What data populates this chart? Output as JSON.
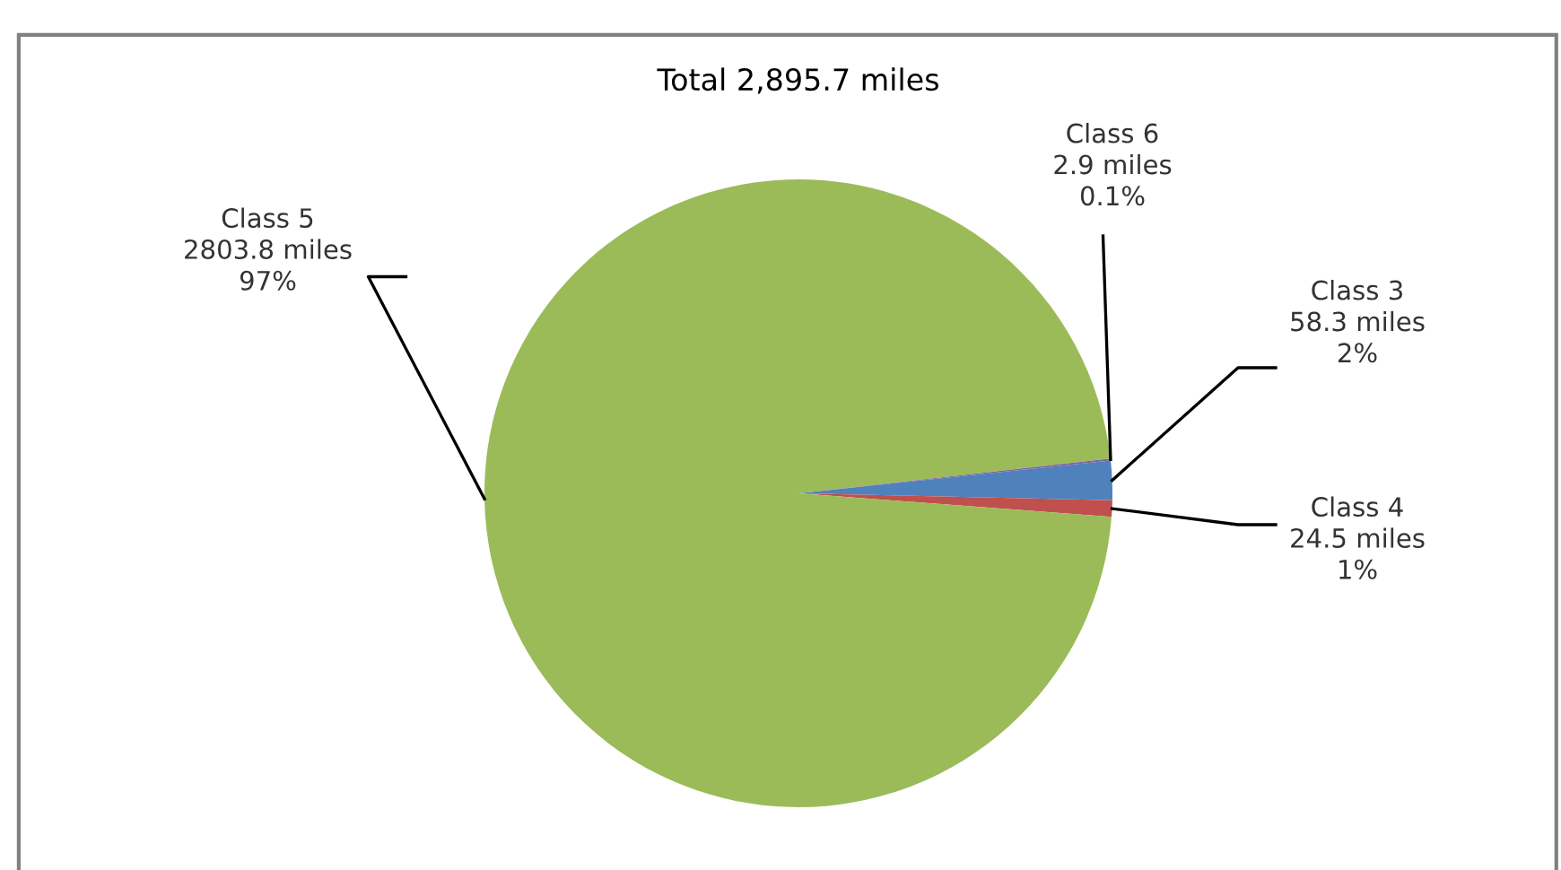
{
  "chart_data": {
    "type": "pie",
    "title": "Total 2,895.7 miles",
    "categories": [
      "Class 3",
      "Class 4",
      "Class 5",
      "Class 6"
    ],
    "values": [
      58.3,
      24.5,
      2803.8,
      2.9
    ],
    "colors": [
      "#4f81bd",
      "#c0504d",
      "#9bbb59",
      "#8064a2"
    ],
    "value_labels": [
      "58.3 miles\n2%",
      "24.5 miles\n1%",
      "2803.8 miles\n97%",
      "2.9 miles\n0.1%"
    ],
    "legend": false
  }
}
